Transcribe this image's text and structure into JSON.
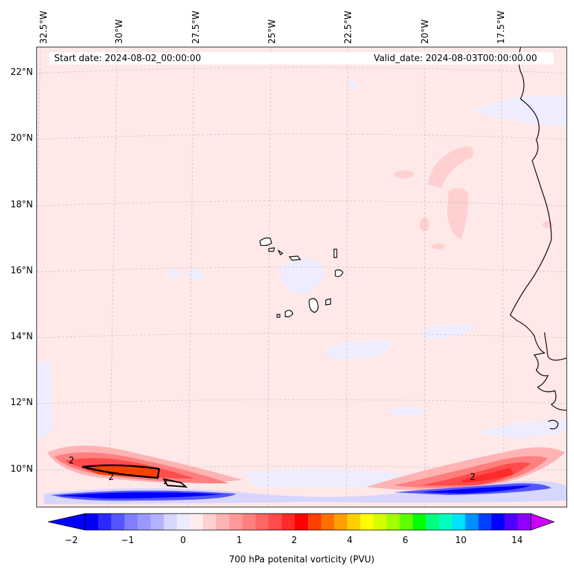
{
  "map": {
    "lon_labels": [
      "32.5°W",
      "30°W",
      "27.5°W",
      "25°W",
      "22.5°W",
      "20°W",
      "17.5°W"
    ],
    "lat_labels": [
      "22°N",
      "20°N",
      "18°N",
      "16°N",
      "14°N",
      "12°N",
      "10°N"
    ],
    "start_date": "Start date: 2024-08-02_00:00:00",
    "valid_date": "Valid_date: 2024-08-03T00:00:00.00",
    "contour_labels": [
      "2",
      "2",
      "2",
      "2"
    ],
    "colors": {
      "background": "#ffe8e8",
      "coast": "#000000"
    }
  },
  "colorbar": {
    "title": "700 hPa potenital vorticity (PVU)",
    "tick_labels": [
      "−2",
      "−1",
      "0",
      "1",
      "2",
      "4",
      "6",
      "10",
      "14"
    ],
    "colors": [
      "#0000ff",
      "#2a2aff",
      "#5555ff",
      "#7f7fff",
      "#9999ff",
      "#b2b2ff",
      "#d6d6ff",
      "#ececff",
      "#ffecec",
      "#ffd0d0",
      "#ffb3b3",
      "#ff9999",
      "#ff7f7f",
      "#ff6666",
      "#ff4c4c",
      "#ff2a2a",
      "#ff0000",
      "#ff4000",
      "#ff7000",
      "#ffa000",
      "#ffd000",
      "#ffff00",
      "#d4ff00",
      "#a0ff00",
      "#60ff00",
      "#00ff00",
      "#00ff80",
      "#00ffc0",
      "#00e0ff",
      "#0090ff",
      "#0040ff",
      "#0000ff",
      "#5000ff",
      "#9000ff"
    ],
    "under_color": "#0000ff",
    "over_color": "#cc00ff"
  }
}
